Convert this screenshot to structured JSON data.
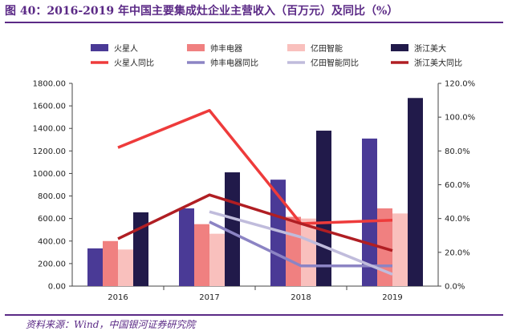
{
  "title": "图 40：2016-2019 年中国主要集成灶企业主营收入（百万元）及同比（%）",
  "source": "资料来源：Wind，中国银河证券研究院",
  "chart_data": {
    "type": "bar",
    "categories": [
      "2016",
      "2017",
      "2018",
      "2019"
    ],
    "ylim": [
      0,
      1800
    ],
    "y2lim": [
      0,
      120
    ],
    "yticks": [
      "0.00",
      "200.00",
      "400.00",
      "600.00",
      "800.00",
      "1000.00",
      "1200.00",
      "1400.00",
      "1600.00",
      "1800.00"
    ],
    "y2ticks": [
      "0.0%",
      "20.0%",
      "40.0%",
      "60.0%",
      "80.0%",
      "100.0%",
      "120.0%"
    ],
    "legend_position": "top",
    "series": [
      {
        "name": "火星人",
        "type": "bar",
        "axis": "left",
        "color": "#4a3a96",
        "values": [
          335,
          690,
          945,
          1310
        ]
      },
      {
        "name": "帅丰电器",
        "type": "bar",
        "axis": "left",
        "color": "#f08080",
        "values": [
          400,
          550,
          615,
          690
        ]
      },
      {
        "name": "亿田智能",
        "type": "bar",
        "axis": "left",
        "color": "#f9c0bd",
        "values": [
          325,
          465,
          600,
          645
        ]
      },
      {
        "name": "浙江美大",
        "type": "bar",
        "axis": "left",
        "color": "#211a4a",
        "values": [
          655,
          1010,
          1380,
          1670
        ]
      },
      {
        "name": "火星人同比",
        "type": "line",
        "axis": "right",
        "color": "#ee3b3b",
        "values": [
          82,
          104,
          37,
          39
        ]
      },
      {
        "name": "帅丰电器同比",
        "type": "line",
        "axis": "right",
        "color": "#8c84c4",
        "values": [
          null,
          38,
          12,
          12
        ]
      },
      {
        "name": "亿田智能同比",
        "type": "line",
        "axis": "right",
        "color": "#c0bcdc",
        "values": [
          null,
          44,
          29,
          7
        ]
      },
      {
        "name": "浙江美大同比",
        "type": "line",
        "axis": "right",
        "color": "#b01e23",
        "values": [
          28,
          54,
          37,
          21
        ]
      }
    ]
  }
}
